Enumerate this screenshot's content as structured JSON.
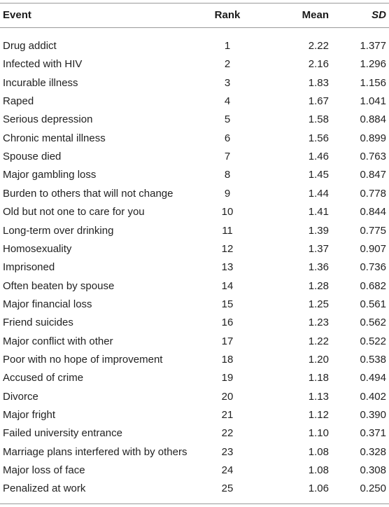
{
  "table": {
    "headers": {
      "event": "Event",
      "rank": "Rank",
      "mean": "Mean",
      "sd": "SD"
    },
    "rows": [
      {
        "event": "Drug addict",
        "rank": "1",
        "mean": "2.22",
        "sd": "1.377"
      },
      {
        "event": "Infected with HIV",
        "rank": "2",
        "mean": "2.16",
        "sd": "1.296"
      },
      {
        "event": "Incurable illness",
        "rank": "3",
        "mean": "1.83",
        "sd": "1.156"
      },
      {
        "event": "Raped",
        "rank": "4",
        "mean": "1.67",
        "sd": "1.041"
      },
      {
        "event": "Serious depression",
        "rank": "5",
        "mean": "1.58",
        "sd": "0.884"
      },
      {
        "event": "Chronic mental illness",
        "rank": "6",
        "mean": "1.56",
        "sd": "0.899"
      },
      {
        "event": "Spouse died",
        "rank": "7",
        "mean": "1.46",
        "sd": "0.763"
      },
      {
        "event": "Major gambling loss",
        "rank": "8",
        "mean": "1.45",
        "sd": "0.847"
      },
      {
        "event": "Burden to others that will not change",
        "rank": "9",
        "mean": "1.44",
        "sd": "0.778"
      },
      {
        "event": "Old but not one to care for you",
        "rank": "10",
        "mean": "1.41",
        "sd": "0.844"
      },
      {
        "event": "Long-term over drinking",
        "rank": "11",
        "mean": "1.39",
        "sd": "0.775"
      },
      {
        "event": "Homosexuality",
        "rank": "12",
        "mean": "1.37",
        "sd": "0.907"
      },
      {
        "event": "Imprisoned",
        "rank": "13",
        "mean": "1.36",
        "sd": "0.736"
      },
      {
        "event": "Often beaten by spouse",
        "rank": "14",
        "mean": "1.28",
        "sd": "0.682"
      },
      {
        "event": "Major financial loss",
        "rank": "15",
        "mean": "1.25",
        "sd": "0.561"
      },
      {
        "event": "Friend suicides",
        "rank": "16",
        "mean": "1.23",
        "sd": "0.562"
      },
      {
        "event": "Major conflict with other",
        "rank": "17",
        "mean": "1.22",
        "sd": "0.522"
      },
      {
        "event": "Poor with no hope of improvement",
        "rank": "18",
        "mean": "1.20",
        "sd": "0.538"
      },
      {
        "event": "Accused of crime",
        "rank": "19",
        "mean": "1.18",
        "sd": "0.494"
      },
      {
        "event": "Divorce",
        "rank": "20",
        "mean": "1.13",
        "sd": "0.402"
      },
      {
        "event": "Major fright",
        "rank": "21",
        "mean": "1.12",
        "sd": "0.390"
      },
      {
        "event": "Failed university entrance",
        "rank": "22",
        "mean": "1.10",
        "sd": "0.371"
      },
      {
        "event": "Marriage plans interfered with by others",
        "rank": "23",
        "mean": "1.08",
        "sd": "0.328"
      },
      {
        "event": "Major loss of face",
        "rank": "24",
        "mean": "1.08",
        "sd": "0.308"
      },
      {
        "event": "Penalized at work",
        "rank": "25",
        "mean": "1.06",
        "sd": "0.250"
      }
    ]
  }
}
